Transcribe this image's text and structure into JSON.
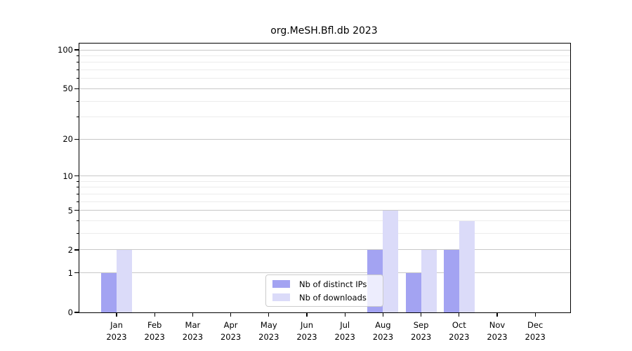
{
  "title": "org.MeSH.Bfl.db 2023",
  "chart_data": {
    "type": "bar",
    "title": "org.MeSH.Bfl.db 2023",
    "categories": [
      "Jan 2023",
      "Feb 2023",
      "Mar 2023",
      "Apr 2023",
      "May 2023",
      "Jun 2023",
      "Jul 2023",
      "Aug 2023",
      "Sep 2023",
      "Oct 2023",
      "Nov 2023",
      "Dec 2023"
    ],
    "series": [
      {
        "name": "Nb of distinct IPs",
        "color": "#a3a3f2",
        "values": [
          1,
          0,
          0,
          0,
          0,
          0,
          0,
          2,
          1,
          2,
          0,
          0
        ]
      },
      {
        "name": "Nb of downloads",
        "color": "#dbdbf9",
        "values": [
          2,
          0,
          0,
          0,
          0,
          0,
          0,
          5,
          2,
          4,
          0,
          0
        ]
      }
    ],
    "xlabel": "",
    "ylabel": "",
    "yscale": "log1p",
    "ylim": [
      0,
      112
    ],
    "yticks": [
      0,
      1,
      2,
      5,
      10,
      20,
      50,
      100
    ],
    "yticks_minor": [
      3,
      4,
      6,
      7,
      8,
      9,
      30,
      40,
      60,
      70,
      80,
      90
    ],
    "grid": "horizontal",
    "legend_position": "bottom-center"
  },
  "colors": {
    "bar_distinct_ips": "#a3a3f2",
    "bar_downloads": "#dbdbf9",
    "grid_major": "#c8c8c8",
    "grid_minor": "#ececec",
    "axis": "#000000",
    "background": "#ffffff",
    "legend_border": "#cccccc"
  }
}
